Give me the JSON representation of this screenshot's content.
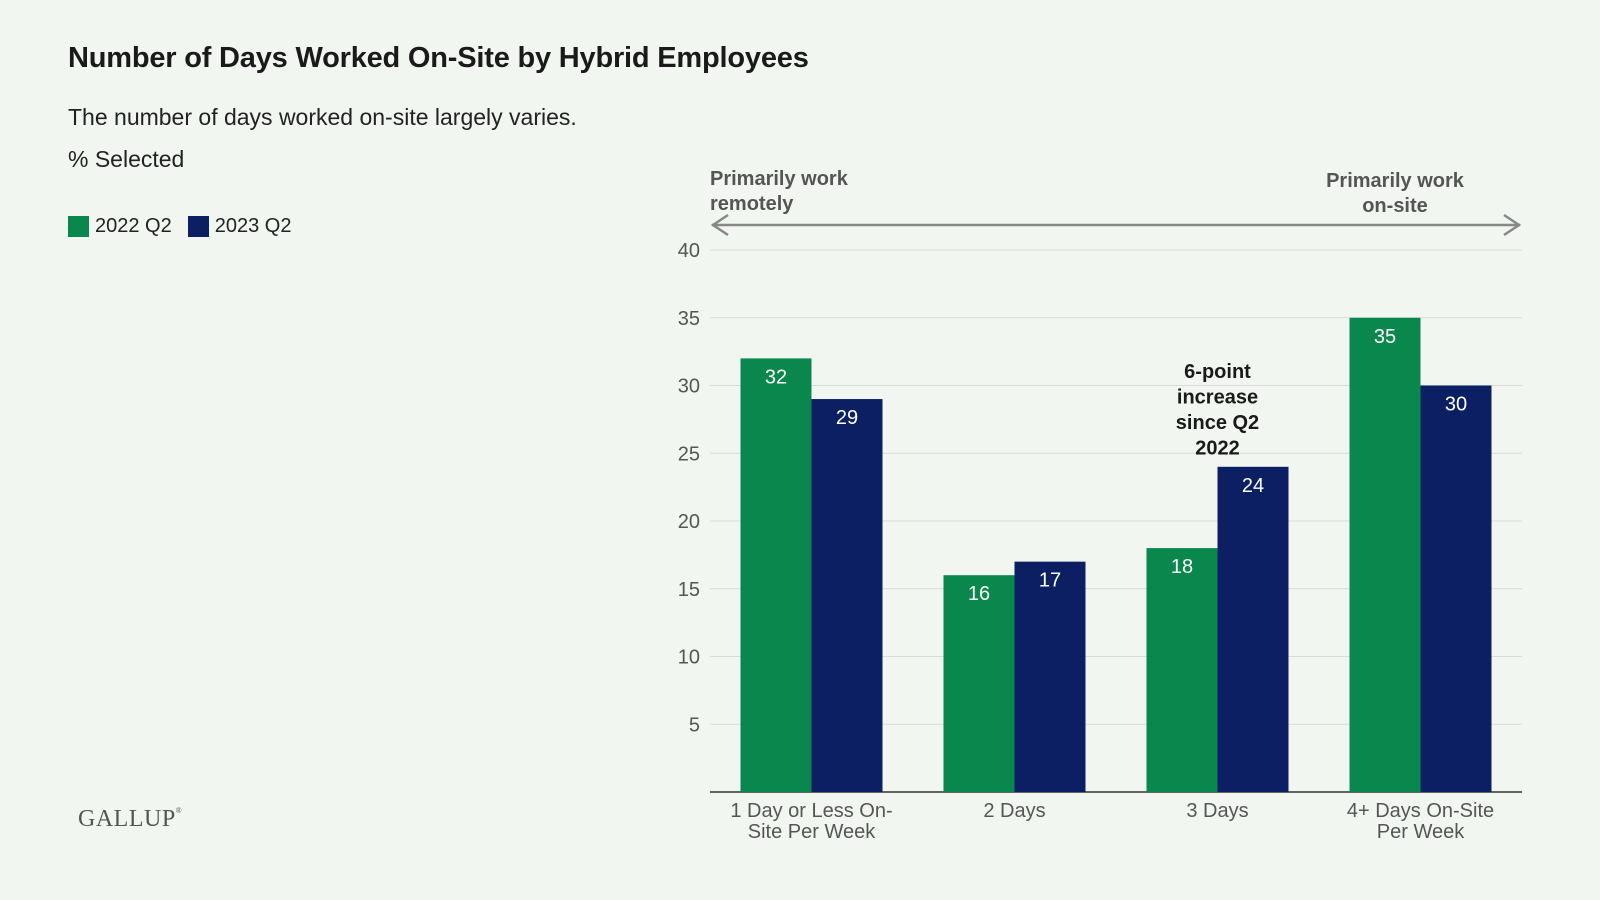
{
  "title": "Number of Days Worked On-Site by Hybrid Employees",
  "subtitle": "The number of days worked on-site largely varies.",
  "unit_label": "% Selected",
  "logo": "GALLUP",
  "colors": {
    "series_2022": "#0a874c",
    "series_2023": "#0c1f63",
    "background": "#f1f7f0"
  },
  "chart_data": {
    "type": "bar",
    "categories": [
      [
        "1 Day or Less On-",
        "Site Per Week"
      ],
      [
        "2 Days"
      ],
      [
        "3 Days"
      ],
      [
        "4+ Days On-Site",
        "Per Week"
      ]
    ],
    "series": [
      {
        "name": "2022 Q2",
        "color": "#0a874c",
        "values": [
          32,
          16,
          18,
          35
        ]
      },
      {
        "name": "2023 Q2",
        "color": "#0c1f63",
        "values": [
          29,
          17,
          24,
          30
        ]
      }
    ],
    "ylim": [
      0,
      40
    ],
    "yticks": [
      5,
      10,
      15,
      20,
      25,
      30,
      35,
      40
    ],
    "grid": true,
    "legend_position": "top-left",
    "direction_labels": {
      "left": [
        "Primarily work",
        "remotely"
      ],
      "right": [
        "Primarily work",
        "on-site"
      ]
    },
    "annotation": {
      "text": [
        "6-point",
        "increase",
        "since Q2",
        "2022"
      ],
      "category_index": 2
    }
  }
}
